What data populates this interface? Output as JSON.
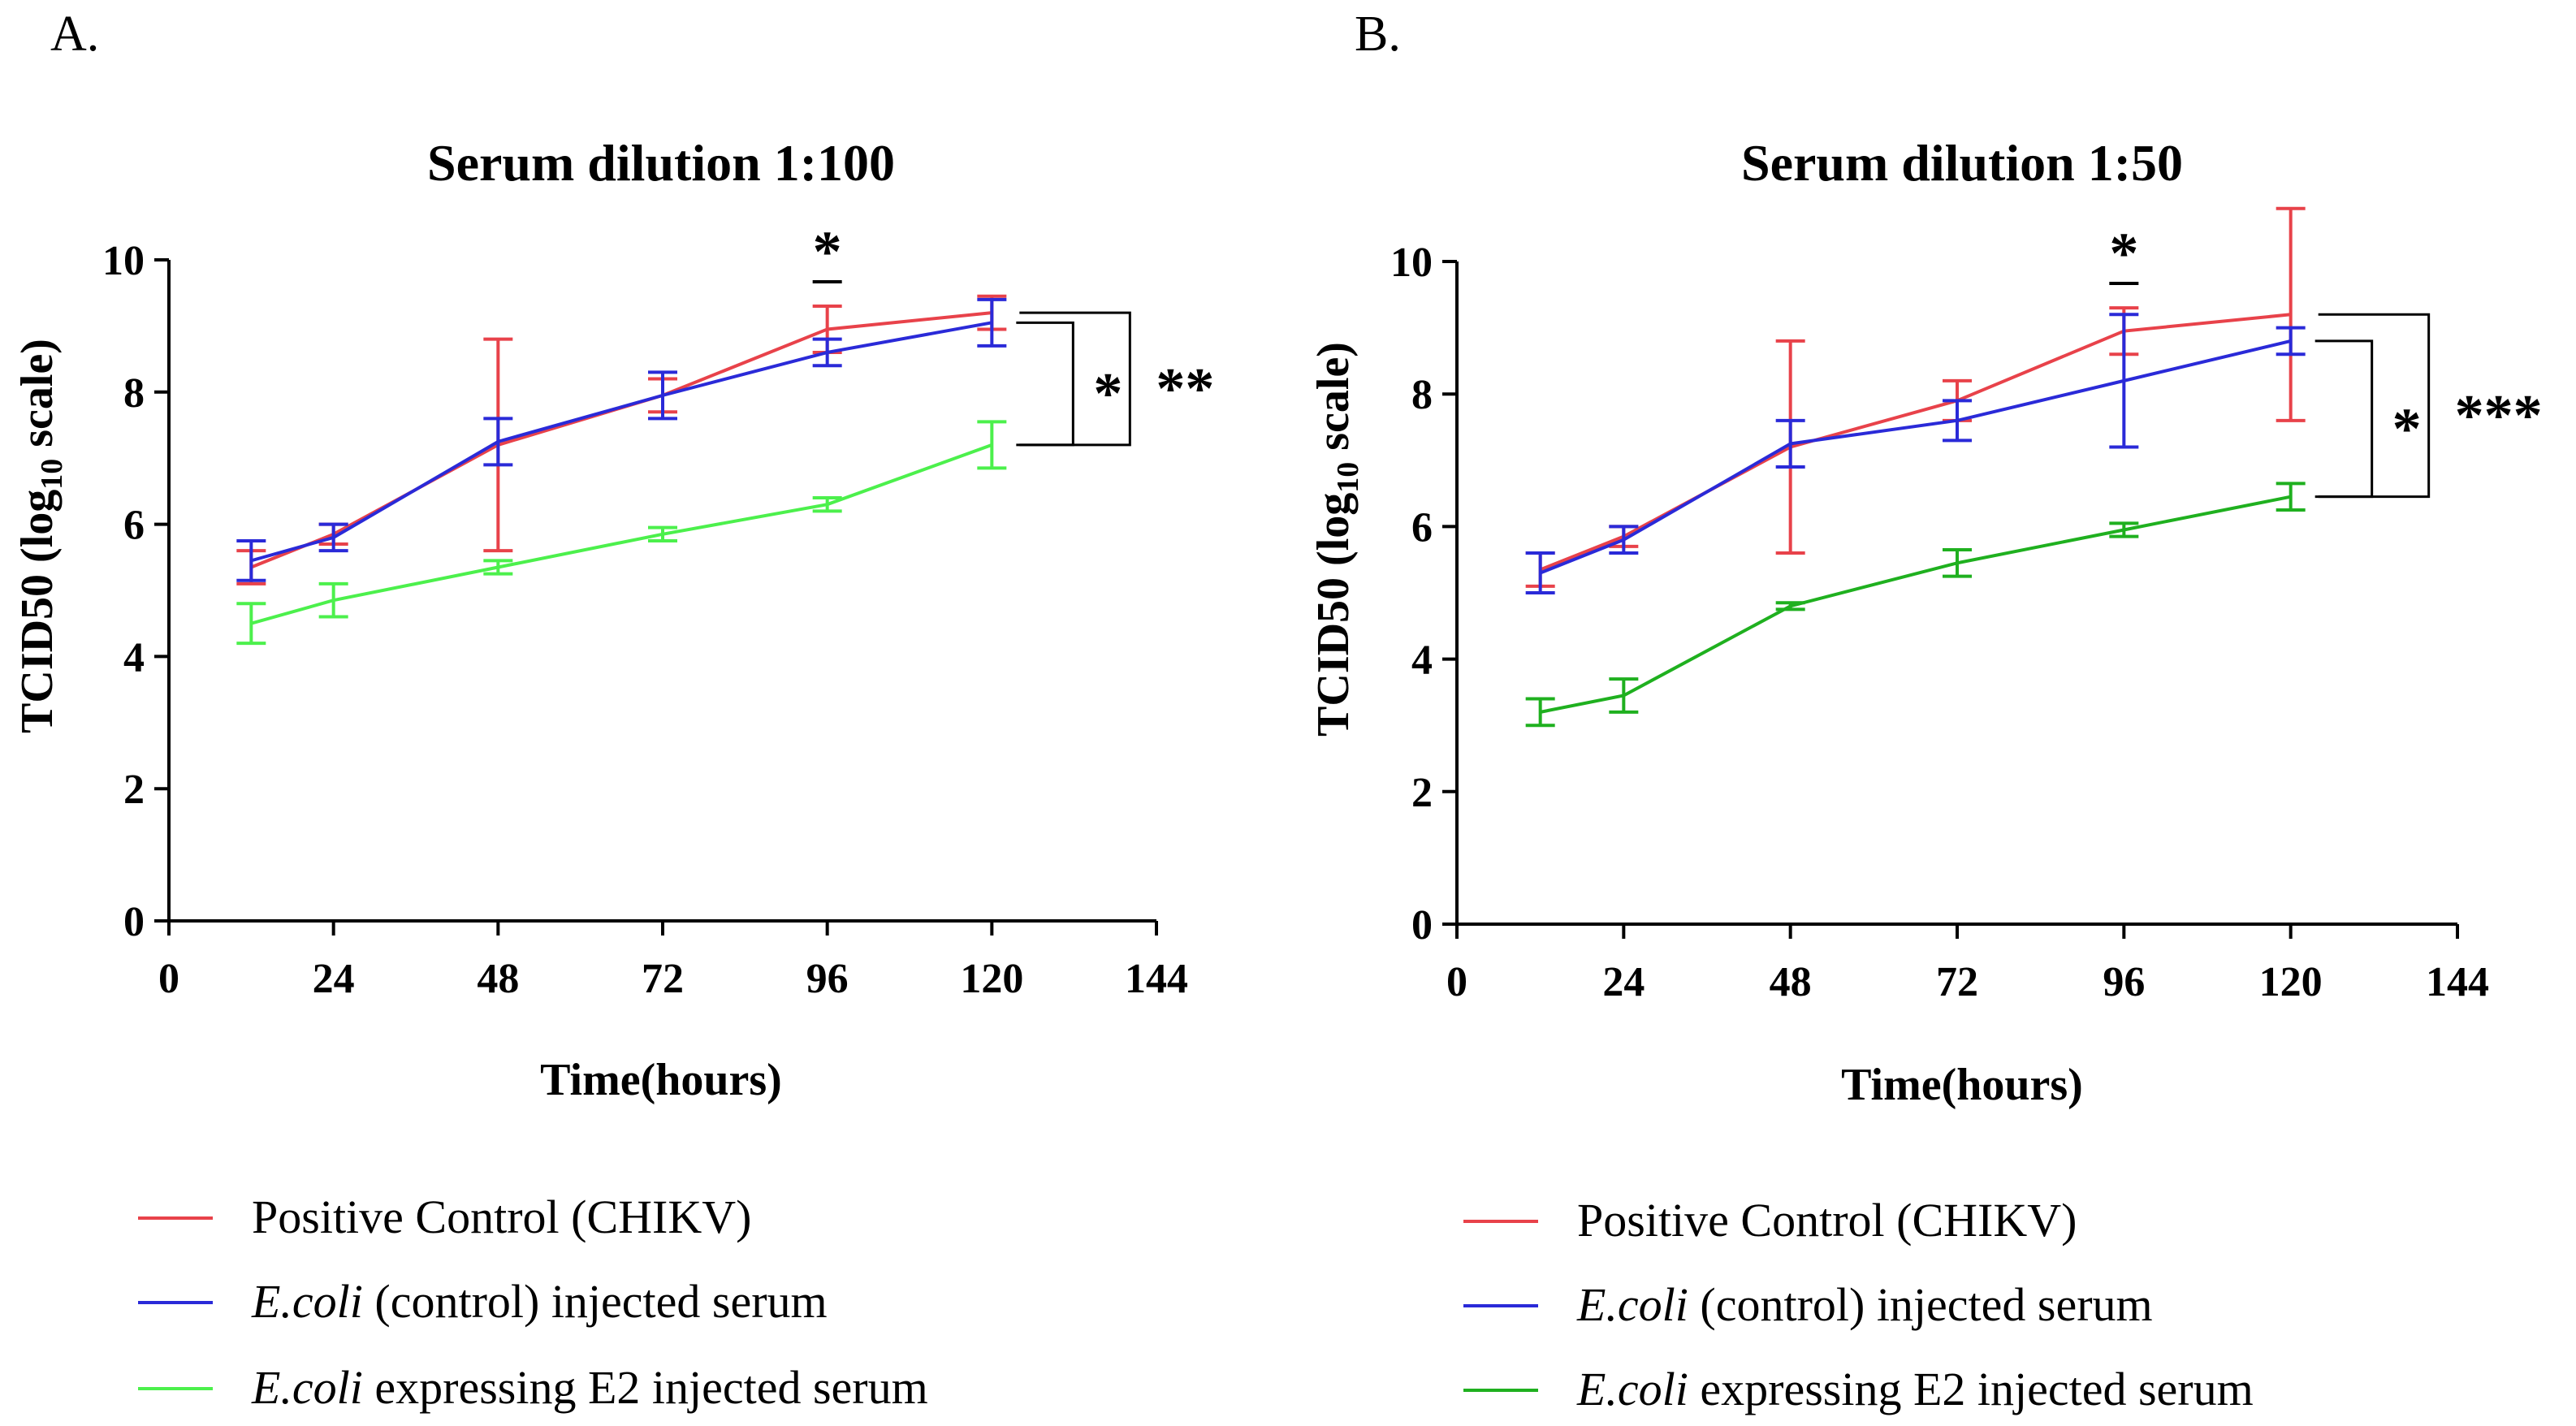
{
  "figure": {
    "panel_labels": [
      "A.",
      "B."
    ]
  },
  "colors": {
    "positive_control": "#e8424a",
    "ecoli_control": "#2a2ad8",
    "ecoli_e2_A": "#4cf04c",
    "ecoli_e2_B": "#1fb01f",
    "axis": "#000000"
  },
  "chart_data": [
    {
      "type": "line",
      "panel": "A.",
      "title": "Serum dilution 1:100",
      "xlabel": "Time(hours)",
      "ylabel_main": "TCID50 (log",
      "ylabel_sub": "10",
      "ylabel_tail": " scale)",
      "xlim": [
        0,
        144
      ],
      "ylim": [
        0,
        10
      ],
      "xticks": [
        0,
        24,
        48,
        72,
        96,
        120,
        144
      ],
      "yticks": [
        0,
        2,
        4,
        6,
        8,
        10
      ],
      "series": [
        {
          "name": "Positive Control (CHIKV)",
          "color_key": "positive_control",
          "x": [
            12,
            24,
            48,
            72,
            96,
            120
          ],
          "y": [
            5.35,
            5.85,
            7.2,
            7.95,
            8.95,
            9.2
          ],
          "err": [
            0.25,
            0.15,
            1.6,
            0.25,
            0.35,
            0.25
          ]
        },
        {
          "name": "E.coli (control) injected serum",
          "color_key": "ecoli_control",
          "x": [
            12,
            24,
            48,
            72,
            96,
            120
          ],
          "y": [
            5.45,
            5.8,
            7.25,
            7.95,
            8.6,
            9.05
          ],
          "err": [
            0.3,
            0.2,
            0.35,
            0.35,
            0.2,
            0.35
          ]
        },
        {
          "name": "E.coli expressing E2 injected serum",
          "color_key": "ecoli_e2_A",
          "x": [
            12,
            24,
            48,
            72,
            96,
            120
          ],
          "y": [
            4.5,
            4.85,
            5.35,
            5.85,
            6.3,
            7.2
          ],
          "err": [
            0.3,
            0.25,
            0.1,
            0.1,
            0.1,
            0.35
          ]
        }
      ],
      "annotations": [
        {
          "text": "*",
          "type": "point",
          "x": 96
        },
        {
          "text": "*",
          "type": "bracket",
          "from": 9.05,
          "to": 7.2
        },
        {
          "text": "**",
          "type": "bracket",
          "from": 9.2,
          "to": 7.2
        }
      ]
    },
    {
      "type": "line",
      "panel": "B.",
      "title": "Serum dilution 1:50",
      "xlabel": "Time(hours)",
      "ylabel_main": "TCID50 (log",
      "ylabel_sub": "10",
      "ylabel_tail": " scale)",
      "xlim": [
        0,
        144
      ],
      "ylim": [
        0,
        10
      ],
      "xticks": [
        0,
        24,
        48,
        72,
        96,
        120,
        144
      ],
      "yticks": [
        0,
        2,
        4,
        6,
        8,
        10
      ],
      "series": [
        {
          "name": "Positive Control (CHIKV)",
          "color_key": "positive_control",
          "x": [
            12,
            24,
            48,
            72,
            96,
            120
          ],
          "y": [
            5.35,
            5.85,
            7.2,
            7.9,
            8.95,
            9.2
          ],
          "err": [
            0.25,
            0.15,
            1.6,
            0.3,
            0.35,
            1.6
          ]
        },
        {
          "name": "E.coli (control) injected serum",
          "color_key": "ecoli_control",
          "x": [
            12,
            24,
            48,
            72,
            96,
            120
          ],
          "y": [
            5.3,
            5.8,
            7.25,
            7.6,
            8.2,
            8.8
          ],
          "err": [
            0.3,
            0.2,
            0.35,
            0.3,
            1.0,
            0.2
          ]
        },
        {
          "name": "E.coli expressing E2 injected serum",
          "color_key": "ecoli_e2_B",
          "x": [
            12,
            24,
            48,
            72,
            96,
            120
          ],
          "y": [
            3.2,
            3.45,
            4.8,
            5.45,
            5.95,
            6.45
          ],
          "err": [
            0.2,
            0.25,
            0.05,
            0.2,
            0.1,
            0.2
          ]
        }
      ],
      "annotations": [
        {
          "text": "*",
          "type": "point",
          "x": 96
        },
        {
          "text": "*",
          "type": "bracket",
          "from": 8.8,
          "to": 6.45
        },
        {
          "text": "***",
          "type": "bracket",
          "from": 9.2,
          "to": 6.45
        }
      ]
    }
  ],
  "legends": [
    {
      "items": [
        {
          "italic": "",
          "text": "Positive Control (CHIKV)",
          "color_key": "positive_control"
        },
        {
          "italic": "E.coli",
          "text": " (control) injected serum",
          "color_key": "ecoli_control"
        },
        {
          "italic": "E.coli",
          "text": " expressing E2 injected serum",
          "color_key": "ecoli_e2_A"
        }
      ]
    },
    {
      "items": [
        {
          "italic": "",
          "text": "Positive Control (CHIKV)",
          "color_key": "positive_control"
        },
        {
          "italic": "E.coli",
          "text": " (control) injected serum",
          "color_key": "ecoli_control"
        },
        {
          "italic": "E.coli",
          "text": " expressing E2 injected serum",
          "color_key": "ecoli_e2_B"
        }
      ]
    }
  ]
}
